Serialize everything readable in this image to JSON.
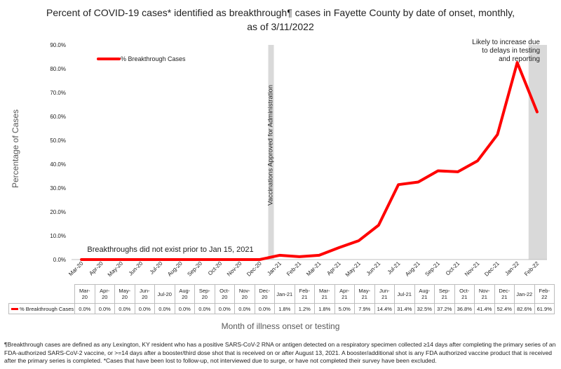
{
  "title": "Percent of COVID-19 cases* identified as breakthrough¶ cases in Fayette County by date of onset, monthly, as of 3/11/2022",
  "ylabel": "Percentage of Cases",
  "xlabel": "Month of illness onset or testing",
  "annotations": {
    "vaccination": "Vaccinations Approved for Administration",
    "no_breakthrough": "Breakthroughs did not exist prior to Jan 15, 2021",
    "likely_increase": "Likely to increase due to delays in testing and reporting"
  },
  "footnote": "¶Breakthrough cases are defined as any Lexington, KY resident who has a positive SARS-CoV-2 RNA or antigen detected on a respiratory specimen collected ≥14 days after completing the primary series of an FDA-authorized SARS-CoV-2 vaccine, or >=14 days after a booster/third dose shot that is received on or after August 13, 2021.  A booster/additional shot is any FDA authorized vaccine product that is received after the primary series is completed. *Cases that have been lost to follow-up, not interviewed due to surge, or have not completed their survey have been excluded.",
  "colors": {
    "line": "#ff0000",
    "shade": "#d9d9d9",
    "axis": "#bfbfbf"
  },
  "chart_data": {
    "type": "line",
    "title": "Percent of COVID-19 cases* identified as breakthrough¶ cases in Fayette County by date of onset, monthly, as of 3/11/2022",
    "xlabel": "Month of illness onset or testing",
    "ylabel": "Percentage of Cases",
    "ylim": [
      0,
      90
    ],
    "yticks": [
      "0.0%",
      "10.0%",
      "20.0%",
      "30.0%",
      "40.0%",
      "50.0%",
      "60.0%",
      "70.0%",
      "80.0%",
      "90.0%"
    ],
    "legend": {
      "position": "top-left",
      "entries": [
        "% Breakthrough Cases"
      ]
    },
    "categories": [
      "Mar-20",
      "Apr-20",
      "May-20",
      "Jun-20",
      "Jul-20",
      "Aug-20",
      "Sep-20",
      "Oct-20",
      "Nov-20",
      "Dec-20",
      "Jan-21",
      "Feb-21",
      "Mar-21",
      "Apr-21",
      "May-21",
      "Jun-21",
      "Jul-21",
      "Aug-21",
      "Sep-21",
      "Oct-21",
      "Nov-21",
      "Dec-21",
      "Jan-22",
      "Feb-22"
    ],
    "series": [
      {
        "name": "% Breakthrough Cases",
        "values": [
          0,
          0,
          0,
          0,
          0,
          0,
          0,
          0,
          0,
          0,
          1.8,
          1.2,
          1.8,
          5.0,
          7.9,
          14.4,
          31.4,
          32.5,
          37.2,
          36.8,
          41.4,
          52.4,
          82.6,
          61.9
        ]
      }
    ],
    "table": {
      "header": [
        [
          "Mar-",
          "20"
        ],
        [
          "Apr-",
          "20"
        ],
        [
          "May-",
          "20"
        ],
        [
          "Jun-",
          "20"
        ],
        [
          "Jul-20"
        ],
        [
          "Aug-",
          "20"
        ],
        [
          "Sep-",
          "20"
        ],
        [
          "Oct-",
          "20"
        ],
        [
          "Nov-",
          "20"
        ],
        [
          "Dec-",
          "20"
        ],
        [
          "Jan-21"
        ],
        [
          "Feb-",
          "21"
        ],
        [
          "Mar-",
          "21"
        ],
        [
          "Apr-",
          "21"
        ],
        [
          "May-",
          "21"
        ],
        [
          "Jun-",
          "21"
        ],
        [
          "Jul-21"
        ],
        [
          "Aug-",
          "21"
        ],
        [
          "Sep-",
          "21"
        ],
        [
          "Oct-",
          "21"
        ],
        [
          "Nov-",
          "21"
        ],
        [
          "Dec-",
          "21"
        ],
        [
          "Jan-22"
        ],
        [
          "Feb-",
          "22"
        ]
      ],
      "row_label": "% Breakthrough Cases",
      "row_values": [
        "0.0%",
        "0.0%",
        "0.0%",
        "0.0%",
        "0.0%",
        "0.0%",
        "0.0%",
        "0.0%",
        "0.0%",
        "0.0%",
        "1.8%",
        "1.2%",
        "1.8%",
        "5.0%",
        "7.9%",
        "14.4%",
        "31.4%",
        "32.5%",
        "37.2%",
        "36.8%",
        "41.4%",
        "52.4%",
        "82.6%",
        "61.9%"
      ]
    },
    "shaded_regions": [
      {
        "label": "Vaccinations Approved for Administration",
        "at_category": "Dec-20"
      },
      {
        "label": "Likely to increase due to delays in testing and reporting",
        "at_category": "Feb-22"
      }
    ]
  }
}
